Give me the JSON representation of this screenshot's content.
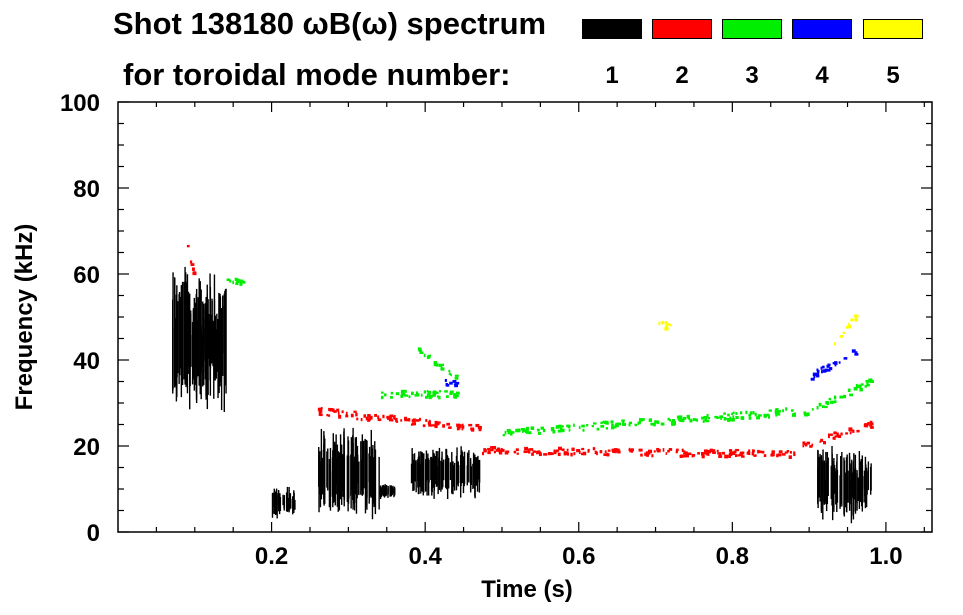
{
  "chart_data": {
    "type": "heatmap",
    "title": "Shot 138180 ωB(ω) spectrum",
    "subtitle": "for toroidal mode number:",
    "xlabel": "Time (s)",
    "ylabel": "Frequency (kHz)",
    "xlim": [
      0.0,
      1.06
    ],
    "ylim": [
      0,
      100
    ],
    "x_ticks": [
      "0.2",
      "0.4",
      "0.6",
      "0.8",
      "1.0"
    ],
    "y_ticks": [
      "0",
      "20",
      "40",
      "60",
      "80",
      "100"
    ],
    "legend": [
      {
        "label": "1",
        "color": "#000000"
      },
      {
        "label": "2",
        "color": "#ff0000"
      },
      {
        "label": "3",
        "color": "#00ee00"
      },
      {
        "label": "4",
        "color": "#0000ff"
      },
      {
        "label": "5",
        "color": "#ffff00"
      }
    ],
    "series": [
      {
        "mode": 1,
        "color": "#000000",
        "regions": [
          {
            "t": [
              0.07,
              0.14
            ],
            "f": [
              30,
              58
            ]
          },
          {
            "t": [
              0.09,
              0.13
            ],
            "f": [
              36,
              50
            ]
          },
          {
            "t": [
              0.2,
              0.23
            ],
            "f": [
              4,
              10
            ]
          },
          {
            "t": [
              0.26,
              0.34
            ],
            "f": [
              5,
              22
            ]
          },
          {
            "t": [
              0.34,
              0.36
            ],
            "f": [
              8,
              11
            ]
          },
          {
            "t": [
              0.38,
              0.47
            ],
            "f": [
              9,
              19
            ]
          },
          {
            "t": [
              0.91,
              0.98
            ],
            "f": [
              4,
              18
            ]
          }
        ]
      },
      {
        "mode": 2,
        "color": "#ff0000",
        "tracks": [
          {
            "t": [
              0.26,
              0.47
            ],
            "f": [
              28,
              24
            ]
          },
          {
            "t": [
              0.47,
              0.88
            ],
            "f": [
              19,
              18
            ]
          },
          {
            "t": [
              0.89,
              0.98
            ],
            "f": [
              20,
              25
            ]
          },
          {
            "t": [
              0.085,
              0.1
            ],
            "f": [
              70,
              58
            ]
          }
        ]
      },
      {
        "mode": 3,
        "color": "#00ee00",
        "tracks": [
          {
            "t": [
              0.34,
              0.44
            ],
            "f": [
              32,
              32
            ]
          },
          {
            "t": [
              0.39,
              0.44
            ],
            "f": [
              42,
              36
            ]
          },
          {
            "t": [
              0.5,
              0.88
            ],
            "f": [
              23,
              28
            ]
          },
          {
            "t": [
              0.89,
              0.98
            ],
            "f": [
              27,
              35
            ]
          },
          {
            "t": [
              0.14,
              0.17
            ],
            "f": [
              59,
              57
            ]
          }
        ]
      },
      {
        "mode": 4,
        "color": "#0000ff",
        "tracks": [
          {
            "t": [
              0.9,
              0.96
            ],
            "f": [
              36,
              42
            ]
          },
          {
            "t": [
              0.42,
              0.44
            ],
            "f": [
              35,
              34
            ]
          }
        ]
      },
      {
        "mode": 5,
        "color": "#ffff00",
        "tracks": [
          {
            "t": [
              0.93,
              0.96
            ],
            "f": [
              44,
              50
            ]
          },
          {
            "t": [
              0.7,
              0.72
            ],
            "f": [
              48,
              48
            ]
          }
        ]
      }
    ]
  }
}
